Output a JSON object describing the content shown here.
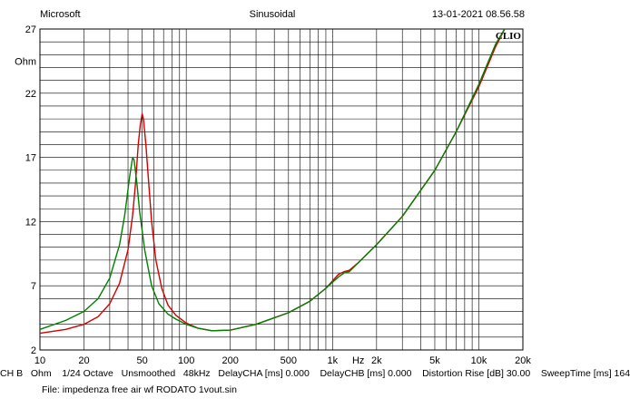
{
  "header": {
    "left": "Microsoft",
    "center": "Sinusoidal",
    "right": "13-01-2021 08.56.58"
  },
  "chart_data": {
    "type": "line",
    "title": "",
    "brand": "CLIO",
    "ylabel": "Ohm",
    "xlabel": "Hz",
    "xscale": "log",
    "xlim": [
      10,
      20000
    ],
    "ylim": [
      2,
      27
    ],
    "grid": true,
    "y_ticks": [
      "2",
      "7",
      "12",
      "17",
      "22",
      "27"
    ],
    "x_ticks": [
      "10",
      "20",
      "50",
      "100",
      "200",
      "500",
      "1k",
      "2k",
      "5k",
      "10k",
      "20k"
    ],
    "series": [
      {
        "color": "#d40000",
        "points": [
          [
            10,
            3.3
          ],
          [
            15,
            3.6
          ],
          [
            20,
            4.0
          ],
          [
            25,
            4.6
          ],
          [
            30,
            5.6
          ],
          [
            35,
            7.2
          ],
          [
            40,
            9.8
          ],
          [
            43,
            12.5
          ],
          [
            45,
            15.0
          ],
          [
            47,
            18.0
          ],
          [
            48.5,
            19.5
          ],
          [
            50,
            20.4
          ],
          [
            51,
            20.0
          ],
          [
            53,
            18.0
          ],
          [
            55,
            15.5
          ],
          [
            58,
            12.0
          ],
          [
            62,
            9.0
          ],
          [
            68,
            6.8
          ],
          [
            75,
            5.5
          ],
          [
            85,
            4.7
          ],
          [
            100,
            4.1
          ],
          [
            120,
            3.7
          ],
          [
            150,
            3.5
          ],
          [
            200,
            3.55
          ],
          [
            300,
            4.0
          ],
          [
            500,
            4.9
          ],
          [
            700,
            5.8
          ],
          [
            900,
            6.8
          ],
          [
            1100,
            7.9
          ],
          [
            1200,
            8.1
          ],
          [
            1300,
            8.2
          ],
          [
            1500,
            8.8
          ],
          [
            2000,
            10.2
          ],
          [
            3000,
            12.4
          ],
          [
            5000,
            16.0
          ],
          [
            7000,
            19.0
          ],
          [
            10000,
            22.5
          ],
          [
            13000,
            25.6
          ],
          [
            15000,
            27.0
          ]
        ]
      },
      {
        "color": "#008000",
        "points": [
          [
            10,
            3.6
          ],
          [
            15,
            4.3
          ],
          [
            20,
            5.0
          ],
          [
            25,
            6.0
          ],
          [
            30,
            7.6
          ],
          [
            35,
            10.2
          ],
          [
            38,
            12.5
          ],
          [
            41,
            15.5
          ],
          [
            43,
            17.0
          ],
          [
            44,
            16.8
          ],
          [
            46,
            15.0
          ],
          [
            48,
            12.8
          ],
          [
            52,
            9.8
          ],
          [
            58,
            7.0
          ],
          [
            65,
            5.6
          ],
          [
            75,
            4.8
          ],
          [
            85,
            4.4
          ],
          [
            100,
            4.0
          ],
          [
            120,
            3.7
          ],
          [
            150,
            3.5
          ],
          [
            200,
            3.55
          ],
          [
            300,
            4.0
          ],
          [
            500,
            4.9
          ],
          [
            700,
            5.8
          ],
          [
            900,
            6.8
          ],
          [
            1100,
            7.7
          ],
          [
            1200,
            8.0
          ],
          [
            1300,
            8.1
          ],
          [
            1500,
            8.8
          ],
          [
            2000,
            10.2
          ],
          [
            3000,
            12.4
          ],
          [
            5000,
            16.0
          ],
          [
            7000,
            19.0
          ],
          [
            10000,
            22.7
          ],
          [
            13000,
            25.8
          ],
          [
            15000,
            27.0
          ]
        ]
      }
    ]
  },
  "footer": {
    "line1": "CH B   Ohm    1/24 Octave   Unsmoothed   48kHz   DelayCHA [ms] 0.000    DelayCHB [ms] 0.000    Distortion Rise [dB] 30.00    SweepTime [ms] 164",
    "line2": "File: impedenza free air wf RODATO 1vout.sin"
  }
}
